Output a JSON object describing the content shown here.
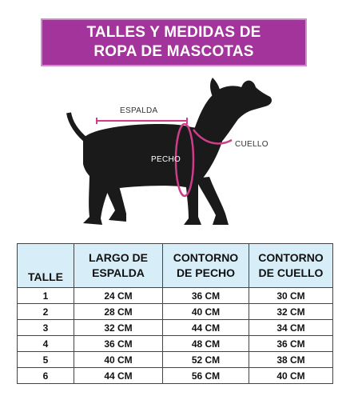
{
  "banner": {
    "line1": "TALLES Y MEDIDAS DE",
    "line2": "ROPA DE MASCOTAS"
  },
  "diagram": {
    "back_label": "ESPALDA",
    "chest_label": "PECHO",
    "neck_label": "CUELLO",
    "accent_color": "#cf3d8a",
    "dog_color": "#1a1a1a"
  },
  "table": {
    "headers": [
      "TALLE",
      "LARGO DE ESPALDA",
      "CONTORNO DE PECHO",
      "CONTORNO DE CUELLO"
    ],
    "header_lines": [
      [
        "TALLE"
      ],
      [
        "LARGO DE",
        "ESPALDA"
      ],
      [
        "CONTORNO",
        "DE PECHO"
      ],
      [
        "CONTORNO",
        "DE CUELLO"
      ]
    ],
    "header_color": "#d7eef8",
    "rows": [
      [
        "1",
        "24 CM",
        "36 CM",
        "30 CM"
      ],
      [
        "2",
        "28 CM",
        "40 CM",
        "32 CM"
      ],
      [
        "3",
        "32 CM",
        "44 CM",
        "34 CM"
      ],
      [
        "4",
        "36 CM",
        "48 CM",
        "36 CM"
      ],
      [
        "5",
        "40 CM",
        "52 CM",
        "38 CM"
      ],
      [
        "6",
        "44 CM",
        "56 CM",
        "40 CM"
      ]
    ]
  }
}
